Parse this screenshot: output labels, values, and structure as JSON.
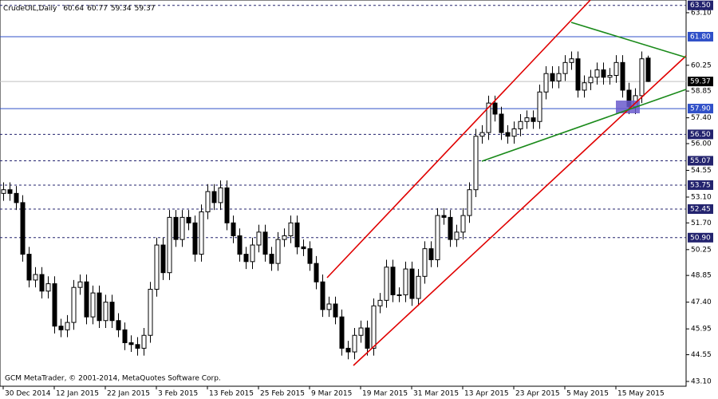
{
  "chart_data": {
    "type": "candlestick",
    "symbol": "CrudeOIL,Daily",
    "footer": "GCM MetaTrader, © 2001-2014, MetaQuotes Software Corp.",
    "categories": [
      "30 Dec 2014",
      null,
      null,
      null,
      null,
      null,
      null,
      null,
      "12 Jan 2015",
      null,
      null,
      null,
      null,
      null,
      null,
      null,
      "22 Jan 2015",
      null,
      null,
      null,
      null,
      null,
      null,
      null,
      "3 Feb 2015",
      null,
      null,
      null,
      null,
      null,
      null,
      null,
      "13 Feb 2015",
      null,
      null,
      null,
      null,
      null,
      null,
      null,
      "25 Feb 2015",
      null,
      null,
      null,
      null,
      null,
      null,
      null,
      "9 Mar 2015",
      null,
      null,
      null,
      null,
      null,
      null,
      null,
      "19 Mar 2015",
      null,
      null,
      null,
      null,
      null,
      null,
      null,
      "31 Mar 2015",
      null,
      null,
      null,
      null,
      null,
      null,
      null,
      "13 Apr 2015",
      null,
      null,
      null,
      null,
      null,
      null,
      null,
      "23 Apr 2015",
      null,
      null,
      null,
      null,
      null,
      null,
      null,
      "5 May 2015",
      null,
      null,
      null,
      null,
      null,
      null,
      null,
      "15 May 2015",
      null,
      null,
      null,
      null,
      null
    ],
    "open": [
      53.3,
      53.5,
      53.3,
      52.8,
      50.0,
      48.6,
      48.9,
      48.0,
      48.4,
      46.1,
      45.9,
      46.3,
      48.2,
      48.5,
      46.6,
      47.9,
      46.4,
      47.4,
      46.4,
      45.9,
      45.2,
      45.1,
      44.9,
      45.6,
      48.1,
      50.5,
      49.0,
      52.0,
      50.8,
      52.0,
      51.7,
      50.0,
      52.3,
      53.4,
      52.8,
      53.6,
      51.7,
      51.0,
      50.0,
      49.6,
      50.5,
      51.2,
      50.0,
      49.5,
      50.8,
      51.0,
      51.7,
      50.4,
      50.3,
      49.5,
      48.5,
      47.0,
      47.3,
      46.6,
      44.9,
      44.7,
      45.6,
      46.0,
      44.9,
      47.2,
      47.5,
      49.3,
      47.8,
      47.8,
      49.2,
      47.6,
      48.8,
      50.3,
      49.7,
      52.1,
      52.0,
      50.8,
      51.2,
      52.1,
      53.5,
      56.4,
      56.6,
      58.2,
      57.6,
      56.6,
      56.4,
      56.8,
      57.2,
      57.4,
      57.2,
      58.8,
      59.8,
      59.4,
      59.8,
      60.4,
      60.6,
      58.9,
      59.3,
      59.6,
      60.0,
      59.6,
      59.7,
      60.4,
      58.9,
      58.0,
      58.6,
      60.64
    ],
    "high": [
      53.9,
      53.9,
      53.7,
      53.2,
      50.4,
      49.3,
      49.3,
      48.8,
      48.8,
      46.5,
      46.7,
      48.6,
      48.9,
      48.9,
      48.3,
      48.3,
      47.8,
      47.8,
      46.8,
      46.3,
      45.6,
      45.5,
      46.0,
      48.5,
      50.9,
      50.9,
      52.4,
      52.4,
      52.4,
      52.4,
      52.1,
      52.7,
      53.8,
      53.8,
      54.0,
      54.0,
      52.1,
      51.4,
      50.4,
      50.9,
      51.6,
      51.6,
      50.4,
      51.2,
      51.4,
      52.1,
      52.1,
      50.8,
      50.7,
      49.9,
      48.9,
      47.7,
      47.7,
      47.0,
      45.3,
      46.0,
      46.4,
      46.4,
      47.6,
      47.9,
      49.7,
      49.7,
      48.2,
      49.6,
      49.6,
      49.2,
      50.7,
      50.7,
      52.5,
      52.5,
      52.4,
      51.6,
      52.5,
      53.9,
      56.8,
      57.0,
      58.6,
      58.6,
      58.0,
      57.0,
      57.2,
      57.6,
      57.8,
      57.8,
      59.2,
      60.2,
      60.2,
      60.2,
      60.8,
      61.0,
      61.0,
      59.7,
      60.0,
      60.4,
      60.4,
      60.1,
      60.8,
      60.8,
      59.3,
      59.0,
      61.0,
      60.77
    ],
    "low": [
      52.9,
      52.9,
      52.4,
      49.6,
      48.2,
      48.2,
      47.6,
      47.6,
      45.7,
      45.5,
      45.5,
      45.9,
      47.8,
      46.2,
      46.2,
      46.0,
      46.0,
      46.0,
      45.5,
      44.8,
      44.7,
      44.5,
      44.5,
      45.2,
      47.7,
      48.6,
      48.6,
      50.4,
      50.4,
      51.3,
      49.6,
      49.6,
      51.9,
      52.4,
      52.4,
      51.3,
      50.6,
      49.6,
      49.2,
      49.2,
      50.1,
      49.6,
      49.1,
      49.1,
      50.4,
      50.6,
      50.0,
      49.9,
      49.1,
      48.1,
      46.6,
      46.6,
      46.2,
      44.5,
      44.3,
      44.3,
      45.2,
      44.5,
      44.5,
      46.8,
      47.1,
      47.4,
      47.4,
      47.4,
      47.2,
      47.2,
      48.4,
      49.3,
      49.3,
      51.6,
      50.4,
      50.4,
      50.8,
      51.7,
      53.1,
      56.0,
      56.2,
      57.2,
      56.2,
      56.0,
      56.0,
      56.4,
      56.8,
      56.8,
      56.8,
      58.4,
      59.0,
      59.0,
      59.4,
      60.0,
      58.5,
      58.5,
      58.9,
      59.2,
      59.2,
      59.2,
      59.3,
      58.5,
      57.6,
      57.6,
      58.2,
      59.34
    ],
    "close": [
      53.5,
      53.3,
      52.8,
      50.0,
      48.6,
      48.9,
      48.0,
      48.4,
      46.1,
      45.9,
      46.3,
      48.2,
      48.5,
      46.6,
      47.9,
      46.4,
      47.4,
      46.4,
      45.9,
      45.2,
      45.1,
      44.9,
      45.6,
      48.1,
      50.5,
      49.0,
      52.0,
      50.8,
      52.0,
      51.7,
      50.0,
      52.3,
      53.4,
      52.8,
      53.6,
      51.7,
      51.0,
      50.0,
      49.6,
      50.5,
      51.2,
      50.0,
      49.5,
      50.8,
      51.0,
      51.7,
      50.4,
      50.3,
      49.5,
      48.5,
      47.0,
      47.3,
      46.6,
      44.9,
      44.7,
      45.6,
      46.0,
      44.9,
      47.2,
      47.5,
      49.3,
      47.8,
      47.8,
      49.2,
      47.6,
      48.8,
      50.3,
      49.7,
      52.1,
      52.0,
      50.8,
      51.2,
      52.1,
      53.5,
      56.4,
      56.6,
      58.2,
      57.6,
      56.6,
      56.4,
      56.8,
      57.2,
      57.4,
      57.2,
      58.8,
      59.8,
      59.4,
      59.8,
      60.4,
      60.6,
      58.9,
      59.3,
      59.6,
      60.0,
      59.6,
      59.7,
      60.4,
      58.9,
      58.0,
      58.6,
      60.6,
      59.37
    ],
    "ylim": [
      42.84,
      63.79
    ],
    "yticks": [
      {
        "value": 63.1,
        "label": "63.10"
      },
      {
        "value": 60.25,
        "label": "60.25"
      },
      {
        "value": 58.85,
        "label": "58.85"
      },
      {
        "value": 57.4,
        "label": "57.40"
      },
      {
        "value": 56.0,
        "label": "56.00"
      },
      {
        "value": 54.55,
        "label": "54.55"
      },
      {
        "value": 53.1,
        "label": "53.10"
      },
      {
        "value": 51.7,
        "label": "51.70"
      },
      {
        "value": 50.25,
        "label": "50.25"
      },
      {
        "value": 48.85,
        "label": "48.85"
      },
      {
        "value": 47.4,
        "label": "47.40"
      },
      {
        "value": 45.95,
        "label": "45.95"
      },
      {
        "value": 44.55,
        "label": "44.55"
      },
      {
        "value": 43.1,
        "label": "43.10"
      }
    ],
    "levels": [
      {
        "value": 63.5,
        "label": "63.50",
        "style": "dash",
        "color": "#23236e"
      },
      {
        "value": 61.8,
        "label": "61.80",
        "style": "solid",
        "color": "#3050c8"
      },
      {
        "value": 59.37,
        "label": "59.37",
        "style": "solid",
        "color": "#c0c0c0"
      },
      {
        "value": 57.9,
        "label": "57.90",
        "style": "solid",
        "color": "#3050c8"
      },
      {
        "value": 56.5,
        "label": "56.50",
        "style": "dash",
        "color": "#23236e"
      },
      {
        "value": 55.07,
        "label": "55.07",
        "style": "dash",
        "color": "#23236e"
      },
      {
        "value": 53.75,
        "label": "53.75",
        "style": "dash",
        "color": "#23236e"
      },
      {
        "value": 52.45,
        "label": "52.45",
        "style": "dash",
        "color": "#23236e"
      },
      {
        "value": 50.9,
        "label": "50.90",
        "style": "dash",
        "color": "#23236e"
      }
    ],
    "up_color": "#ffffff",
    "down_color": "#000000"
  }
}
